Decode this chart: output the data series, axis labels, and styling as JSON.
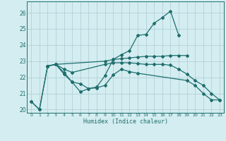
{
  "xlabel": "Humidex (Indice chaleur)",
  "xlim": [
    -0.5,
    23.5
  ],
  "ylim": [
    19.8,
    26.7
  ],
  "yticks": [
    20,
    21,
    22,
    23,
    24,
    25,
    26
  ],
  "xticks": [
    0,
    1,
    2,
    3,
    4,
    5,
    6,
    7,
    8,
    9,
    10,
    11,
    12,
    13,
    14,
    15,
    16,
    17,
    18,
    19,
    20,
    21,
    22,
    23
  ],
  "bg_color": "#d4edf0",
  "grid_color": "#aacdd4",
  "line_color": "#1e6e6e",
  "lines": [
    {
      "x": [
        0,
        1,
        2,
        3,
        4,
        5,
        6,
        7,
        8,
        9,
        10,
        11,
        12,
        13,
        14,
        15,
        16,
        17,
        18
      ],
      "y": [
        20.5,
        20.0,
        22.7,
        22.8,
        22.3,
        21.7,
        21.1,
        21.3,
        21.4,
        22.1,
        23.1,
        23.4,
        23.65,
        24.6,
        24.65,
        25.35,
        25.7,
        26.1,
        24.6
      ]
    },
    {
      "x": [
        0,
        1,
        2,
        3,
        9,
        10,
        11,
        12,
        13,
        14,
        15,
        16,
        17,
        18,
        19
      ],
      "y": [
        20.5,
        20.0,
        22.7,
        22.8,
        23.0,
        23.1,
        23.15,
        23.2,
        23.25,
        23.3,
        23.3,
        23.3,
        23.35,
        23.35,
        23.35
      ]
    },
    {
      "x": [
        2,
        3,
        4,
        5,
        9,
        10,
        11,
        12,
        13,
        14,
        15,
        16,
        17,
        18,
        19,
        20,
        21,
        22,
        23
      ],
      "y": [
        22.7,
        22.8,
        22.5,
        22.3,
        22.8,
        22.9,
        22.9,
        22.9,
        22.85,
        22.8,
        22.8,
        22.8,
        22.75,
        22.5,
        22.2,
        21.8,
        21.5,
        21.0,
        20.6
      ]
    },
    {
      "x": [
        2,
        3,
        4,
        5,
        6,
        7,
        8,
        9,
        10,
        11,
        12,
        13,
        19,
        20,
        21,
        22,
        23
      ],
      "y": [
        22.7,
        22.8,
        22.2,
        21.7,
        21.6,
        21.3,
        21.35,
        21.5,
        22.15,
        22.5,
        22.35,
        22.25,
        21.8,
        21.5,
        21.0,
        20.6,
        20.6
      ]
    }
  ]
}
